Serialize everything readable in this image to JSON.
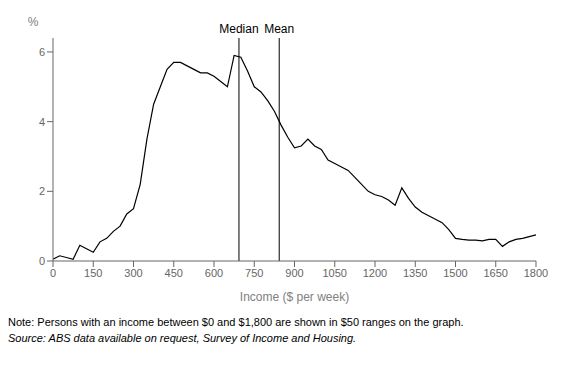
{
  "chart_data": {
    "type": "line",
    "xlabel": "Income ($ per week)",
    "ylabel": "%",
    "xlim": [
      0,
      1800
    ],
    "ylim": [
      0,
      6.4
    ],
    "xticks": [
      0,
      150,
      300,
      450,
      600,
      750,
      900,
      1050,
      1200,
      1350,
      1500,
      1650,
      1800
    ],
    "yticks": [
      0,
      2,
      4,
      6
    ],
    "grid": false,
    "color": "#000000",
    "x": [
      0,
      25,
      50,
      75,
      100,
      125,
      150,
      175,
      200,
      225,
      250,
      275,
      300,
      325,
      350,
      375,
      400,
      425,
      450,
      475,
      500,
      525,
      550,
      575,
      600,
      625,
      650,
      675,
      700,
      725,
      750,
      775,
      800,
      825,
      850,
      875,
      900,
      925,
      950,
      975,
      1000,
      1025,
      1050,
      1075,
      1100,
      1125,
      1150,
      1175,
      1200,
      1225,
      1250,
      1275,
      1300,
      1325,
      1350,
      1375,
      1400,
      1425,
      1450,
      1475,
      1500,
      1525,
      1550,
      1575,
      1600,
      1625,
      1650,
      1675,
      1700,
      1725,
      1750,
      1775,
      1800
    ],
    "values": [
      0.05,
      0.15,
      0.1,
      0.05,
      0.45,
      0.35,
      0.25,
      0.55,
      0.65,
      0.85,
      1.0,
      1.35,
      1.5,
      2.2,
      3.5,
      4.5,
      5.0,
      5.5,
      5.7,
      5.7,
      5.6,
      5.5,
      5.4,
      5.4,
      5.3,
      5.15,
      5.0,
      5.9,
      5.85,
      5.45,
      5.0,
      4.85,
      4.6,
      4.3,
      3.9,
      3.55,
      3.25,
      3.3,
      3.5,
      3.3,
      3.2,
      2.9,
      2.8,
      2.7,
      2.6,
      2.4,
      2.2,
      2.0,
      1.9,
      1.85,
      1.75,
      1.6,
      2.1,
      1.8,
      1.55,
      1.4,
      1.3,
      1.2,
      1.1,
      0.9,
      0.65,
      0.62,
      0.6,
      0.6,
      0.58,
      0.62,
      0.62,
      0.42,
      0.55,
      0.62,
      0.65,
      0.7,
      0.75
    ],
    "annotations": [
      {
        "label": "Median",
        "x": 693
      },
      {
        "label": "Mean",
        "x": 843
      }
    ],
    "notes": [
      "Note:  Persons with an income between $0 and $1,800 are shown in $50 ranges on the graph.",
      "Source: ABS data available on request, Survey of Income and Housing."
    ]
  }
}
